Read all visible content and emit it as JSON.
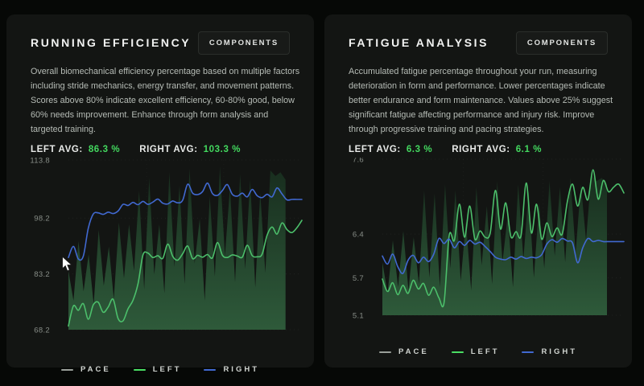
{
  "colors": {
    "page_bg": "#060806",
    "panel_bg": "#131513",
    "title": "#f1f2f1",
    "description": "#b6bcb6",
    "avg_value_green": "#43d95f",
    "tick_label": "#878d87",
    "button_border": "#2b2e2b",
    "pace_fill_top": "#182d1e",
    "pace_fill_bottom": "#2e5a3a",
    "left_line": "#4cbf6b",
    "right_line": "#4169d1",
    "legend_pace": "#9aa09a"
  },
  "legend": [
    {
      "label": "PACE",
      "color": "#9aa09a"
    },
    {
      "label": "LEFT",
      "color": "#4ade64"
    },
    {
      "label": "RIGHT",
      "color": "#4169d1"
    }
  ],
  "panels": [
    {
      "title": "RUNNING EFFICIENCY",
      "button": "COMPONENTS",
      "description": "Overall biomechanical efficiency percentage based on multiple factors including stride mechanics, energy transfer, and movement patterns. Scores above 80% indicate excellent efficiency, 60-80% good, below 60% needs improvement. Enhance through form analysis and targeted training.",
      "left_avg_label": "LEFT AVG:",
      "left_avg_value": "86.3 %",
      "right_avg_label": "RIGHT AVG:",
      "right_avg_value": "103.3 %",
      "chart_data": {
        "type": "line",
        "ylim": [
          68.2,
          113.8
        ],
        "yticks": [
          113.8,
          98.2,
          83.2,
          68.2
        ],
        "pace_span": 0.93,
        "legend_position": "bottom-center",
        "series": [
          {
            "name": "PACE",
            "type": "area",
            "values": [
              84.0,
              76.0,
              92.0,
              78.5,
              88.5,
              75.0,
              95.0,
              80.0,
              90.5,
              76.5,
              97.0,
              82.0,
              96.5,
              84.0,
              105.5,
              79.0,
              109.0,
              83.0,
              96.5,
              78.0,
              110.5,
              85.0,
              107.0,
              80.5,
              111.5,
              86.0,
              98.0,
              76.0,
              104.0,
              82.5,
              112.0,
              88.0,
              106.5,
              81.0,
              110.0,
              84.5,
              108.5,
              79.5,
              105.0,
              83.5,
              111.0,
              109.5,
              110.5,
              108.5
            ]
          },
          {
            "name": "LEFT",
            "type": "line",
            "values": [
              69.2,
              74.6,
              73.4,
              75.2,
              71.0,
              74.9,
              75.6,
              72.9,
              74.3,
              76.4,
              71.2,
              70.6,
              73.8,
              76.1,
              80.5,
              88.3,
              88.8,
              87.6,
              88.1,
              87.4,
              91.2,
              87.9,
              86.9,
              88.6,
              90.7,
              87.3,
              88.2,
              87.7,
              88.4,
              87.5,
              91.6,
              88.2,
              87.6,
              88.3,
              88.0,
              87.7,
              90.9,
              88.1,
              87.8,
              88.5,
              93.6,
              95.8,
              93.9,
              96.9,
              95.1,
              94.3,
              95.6,
              97.6
            ]
          },
          {
            "name": "RIGHT",
            "type": "line",
            "values": [
              87.6,
              90.6,
              87.2,
              88.0,
              95.5,
              99.3,
              99.6,
              99.2,
              99.8,
              99.4,
              100.1,
              101.9,
              101.6,
              102.4,
              101.8,
              102.7,
              101.9,
              102.5,
              103.3,
              102.2,
              102.0,
              102.8,
              102.3,
              103.0,
              107.3,
              104.9,
              104.5,
              105.3,
              107.6,
              104.8,
              104.3,
              105.6,
              107.2,
              104.6,
              104.1,
              104.9,
              103.9,
              105.9,
              104.2,
              103.7,
              104.6,
              103.9,
              106.3,
              104.7,
              103.1,
              103.2,
              103.2,
              103.2
            ]
          }
        ]
      }
    },
    {
      "title": "FATIGUE ANALYSIS",
      "button": "COMPONENTS",
      "description": "Accumulated fatigue percentage throughout your run, measuring deterioration in form and performance. Lower percentages indicate better endurance and form maintenance. Values above 25% suggest significant fatigue affecting performance and injury risk. Improve through progressive training and pacing strategies.",
      "left_avg_label": "LEFT AVG:",
      "left_avg_value": "6.3 %",
      "right_avg_label": "RIGHT AVG:",
      "right_avg_value": "6.1 %",
      "chart_data": {
        "type": "line",
        "ylim": [
          5.1,
          7.6
        ],
        "yticks": [
          7.6,
          6.4,
          5.7,
          5.1
        ],
        "pace_span": 0.93,
        "legend_position": "bottom-center",
        "series": [
          {
            "name": "PACE",
            "type": "area",
            "values": [
              5.95,
              5.45,
              6.3,
              5.55,
              6.45,
              5.5,
              6.35,
              5.6,
              7.1,
              5.7,
              7.05,
              5.55,
              7.2,
              5.85,
              7.1,
              5.65,
              6.6,
              5.5,
              7.15,
              5.9,
              6.85,
              5.6,
              7.25,
              5.95,
              6.7,
              5.55,
              7.2,
              6.0,
              7.1,
              5.7,
              6.9,
              5.85,
              7.25,
              6.05,
              7.15,
              5.95,
              7.3,
              6.1,
              7.2,
              6.3,
              7.35,
              7.25,
              7.3,
              7.2
            ]
          },
          {
            "name": "LEFT",
            "type": "line",
            "values": [
              5.68,
              5.48,
              5.62,
              5.43,
              5.58,
              5.45,
              5.66,
              5.52,
              5.61,
              5.42,
              5.55,
              5.38,
              5.3,
              6.38,
              6.3,
              6.88,
              6.35,
              6.85,
              6.32,
              6.45,
              6.35,
              6.42,
              7.1,
              6.48,
              6.9,
              6.36,
              6.44,
              6.38,
              7.22,
              6.42,
              6.88,
              6.32,
              6.58,
              6.36,
              6.5,
              6.4,
              6.92,
              7.2,
              6.85,
              7.15,
              6.95,
              7.43,
              6.96,
              7.26,
              7.08,
              7.15,
              7.2,
              7.06
            ]
          },
          {
            "name": "RIGHT",
            "type": "line",
            "values": [
              6.05,
              5.92,
              6.08,
              5.88,
              5.77,
              5.98,
              6.06,
              5.94,
              6.03,
              5.96,
              6.08,
              6.33,
              6.25,
              6.32,
              6.18,
              6.28,
              6.22,
              6.3,
              6.24,
              6.27,
              6.2,
              6.12,
              6.03,
              6.0,
              5.99,
              6.03,
              6.0,
              6.04,
              6.01,
              6.03,
              6.02,
              6.07,
              6.24,
              6.31,
              6.27,
              6.33,
              6.29,
              6.26,
              5.94,
              6.18,
              6.33,
              6.28,
              6.3,
              6.28,
              6.28,
              6.28,
              6.28,
              6.28
            ]
          }
        ]
      }
    }
  ]
}
